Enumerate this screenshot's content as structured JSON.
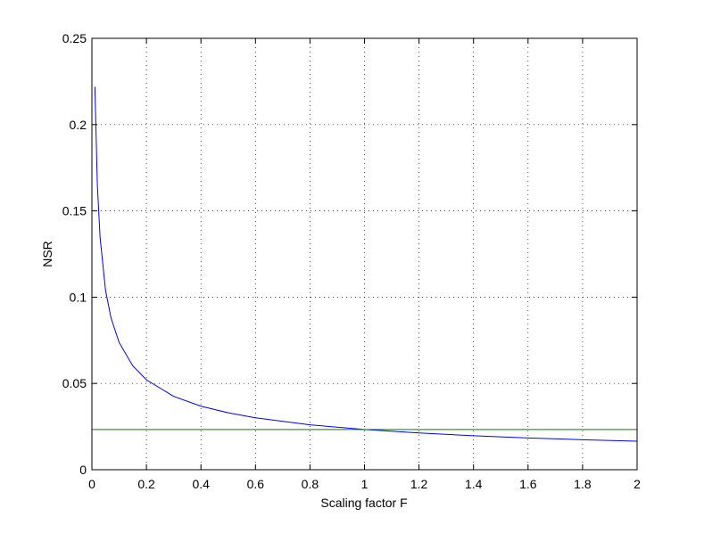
{
  "chart_data": {
    "type": "line",
    "xlabel": "Scaling factor F",
    "ylabel": "NSR",
    "series": [
      {
        "color": "#0000ff",
        "x": [
          0.011,
          0.02,
          0.03,
          0.05,
          0.07,
          0.1,
          0.15,
          0.2,
          0.3,
          0.4,
          0.5,
          0.6,
          0.8,
          1.0,
          1.2,
          1.4,
          1.6,
          1.8,
          2.0
        ],
        "values": [
          0.222,
          0.165,
          0.1345,
          0.104,
          0.088,
          0.0737,
          0.0602,
          0.0521,
          0.0425,
          0.0368,
          0.033,
          0.0301,
          0.026,
          0.0233,
          0.0213,
          0.0197,
          0.0184,
          0.0174,
          0.0165
        ]
      },
      {
        "color": "#008000",
        "x": [
          0,
          2
        ],
        "values": [
          0.0233,
          0.0233
        ]
      }
    ],
    "xlim": [
      0,
      2
    ],
    "xticks": [
      0,
      0.2,
      0.4,
      0.6,
      0.8,
      1,
      1.2,
      1.4,
      1.6,
      1.8,
      2
    ],
    "ylim": [
      0,
      0.25
    ],
    "yticks": [
      0,
      0.05,
      0.1,
      0.15,
      0.2,
      0.25
    ],
    "grid": true
  }
}
